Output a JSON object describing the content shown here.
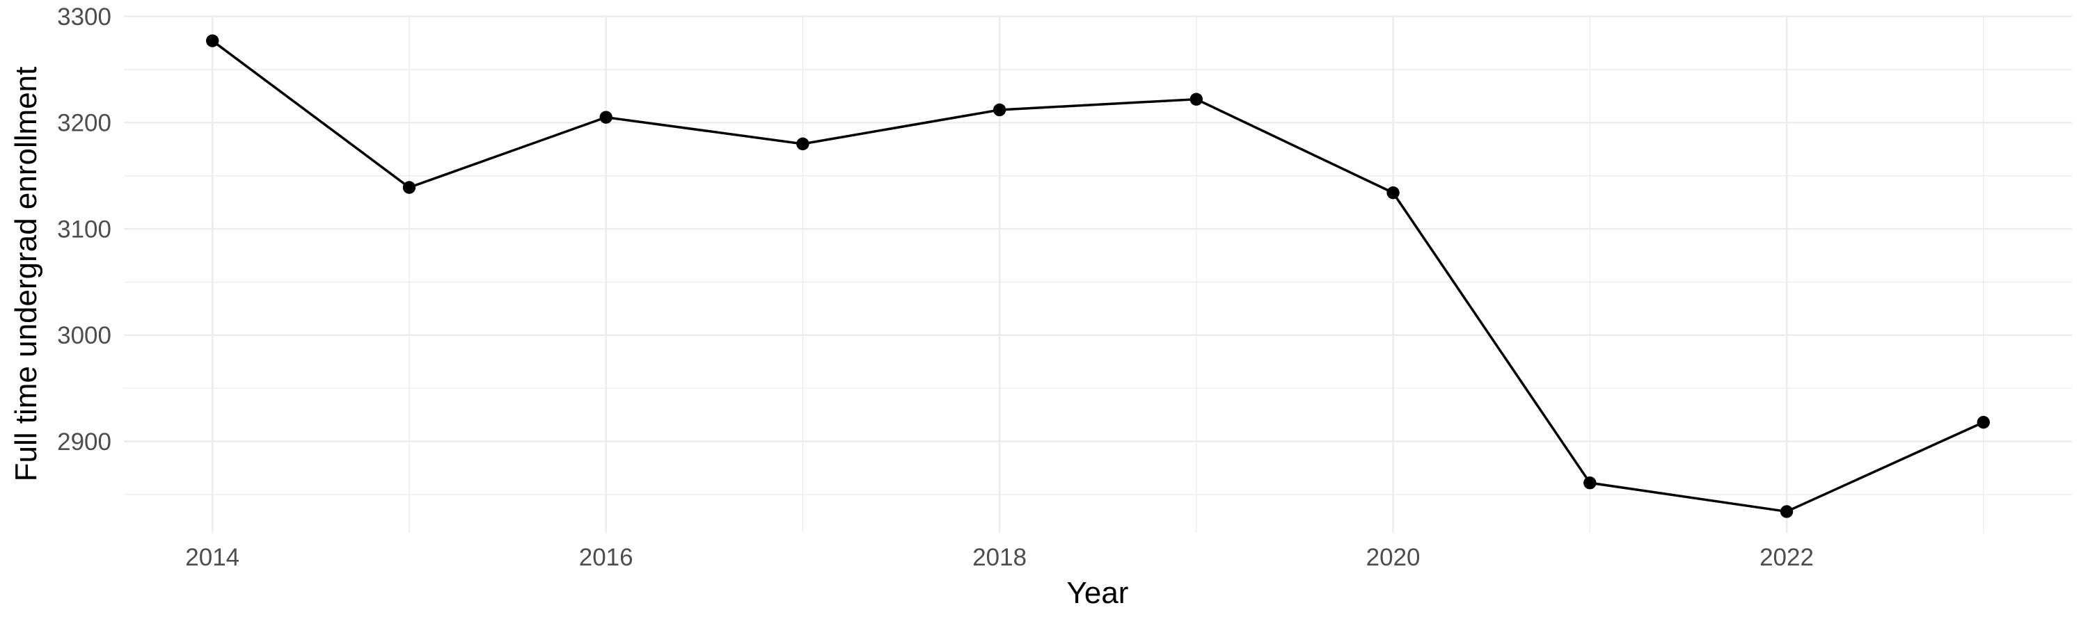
{
  "chart_data": {
    "type": "line",
    "title": "",
    "xlabel": "Year",
    "ylabel": "Full time undergrad enrollment",
    "x": [
      2014,
      2015,
      2016,
      2017,
      2018,
      2019,
      2020,
      2021,
      2022,
      2023
    ],
    "series": [
      {
        "name": "Full time undergrad enrollment",
        "values": [
          3277,
          3139,
          3205,
          3180,
          3212,
          3222,
          3134,
          2861,
          2834,
          2918
        ]
      }
    ],
    "xlim": [
      2013.55,
      2023.45
    ],
    "ylim": [
      2814,
      3301
    ],
    "x_major_ticks": [
      2014,
      2016,
      2018,
      2020,
      2022
    ],
    "x_tick_labels": [
      "2014",
      "2016",
      "2018",
      "2020",
      "2022"
    ],
    "x_minor_ticks": [
      2015,
      2017,
      2019,
      2021,
      2023
    ],
    "y_major_ticks": [
      2900,
      3000,
      3100,
      3200,
      3300
    ],
    "y_tick_labels": [
      "2900",
      "3000",
      "3100",
      "3200",
      "3300"
    ],
    "y_minor_ticks": [
      2850,
      2950,
      3050,
      3150,
      3250
    ],
    "grid": "major-and-minor",
    "legend_position": "none",
    "marker": "filled-circle",
    "colors": {
      "series_line": "#000000",
      "point": "#000000",
      "gridline": "#ebebeb",
      "tick_label": "#4d4d4d",
      "axis_title": "#000000",
      "background": "#ffffff"
    }
  }
}
